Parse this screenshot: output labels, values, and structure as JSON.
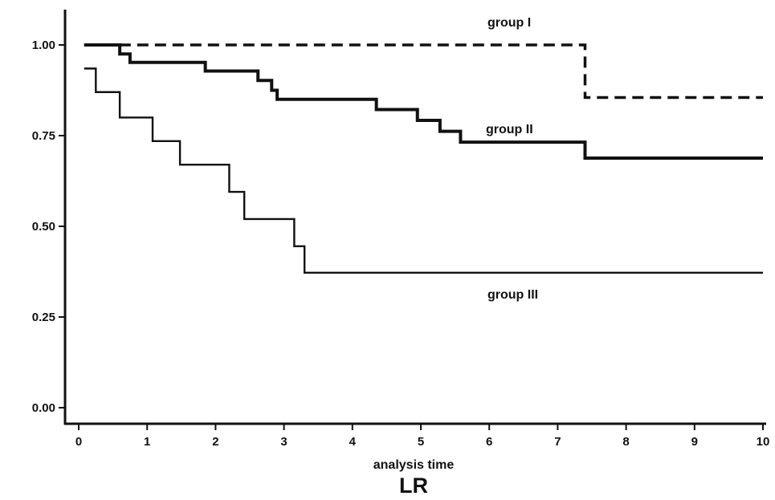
{
  "chart_data": {
    "type": "line",
    "step": true,
    "title": "LR",
    "xlabel": "analysis time",
    "ylabel": "",
    "xlim": [
      0,
      10
    ],
    "ylim": [
      0,
      1
    ],
    "x_ticks": [
      0,
      1,
      2,
      3,
      4,
      5,
      6,
      7,
      8,
      9,
      10
    ],
    "x_tick_labels": [
      "0",
      "1",
      "2",
      "3",
      "4",
      "5",
      "6",
      "7",
      "8",
      "9",
      "10"
    ],
    "y_ticks": [
      0,
      0.25,
      0.5,
      0.75,
      1.0
    ],
    "y_tick_labels": [
      "0.00",
      "0.25",
      "0.50",
      "0.75",
      "1.00"
    ],
    "grid": false,
    "legend": "none",
    "series": [
      {
        "name": "group I",
        "line_style": "dashed",
        "x": [
          0.08,
          7.4,
          10.0
        ],
        "y": [
          1.0,
          0.855,
          0.855
        ]
      },
      {
        "name": "group II",
        "line_style": "solid-thick",
        "x": [
          0.08,
          0.6,
          0.75,
          1.85,
          2.62,
          2.82,
          2.9,
          4.35,
          4.95,
          5.28,
          5.58,
          7.4,
          10.0
        ],
        "y": [
          1.0,
          0.975,
          0.952,
          0.928,
          0.902,
          0.875,
          0.85,
          0.822,
          0.792,
          0.762,
          0.732,
          0.688,
          0.688
        ]
      },
      {
        "name": "group III",
        "line_style": "solid-thin",
        "x": [
          0.08,
          0.25,
          0.6,
          1.08,
          1.48,
          2.2,
          2.42,
          3.15,
          3.3,
          10.0
        ],
        "y": [
          0.935,
          0.87,
          0.8,
          0.735,
          0.67,
          0.595,
          0.52,
          0.445,
          0.372,
          0.372
        ]
      }
    ]
  }
}
